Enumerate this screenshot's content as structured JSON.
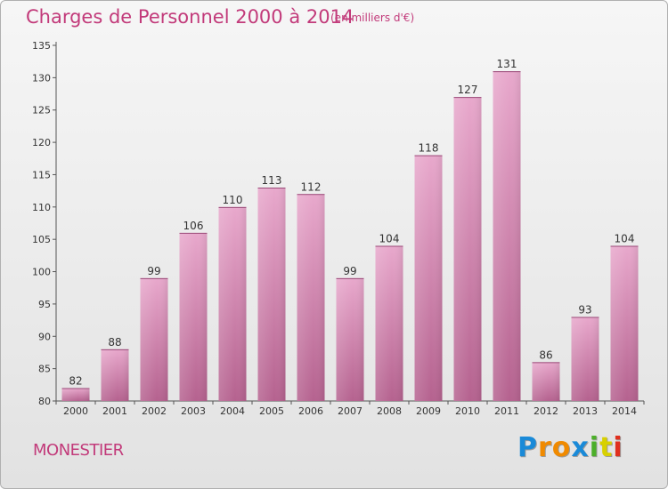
{
  "header": {
    "title": "Charges de Personnel 2000 à 2014",
    "subtitle": "(en milliers d'€)"
  },
  "footer": {
    "place": "MONESTIER",
    "logo_text": "Proxiti",
    "logo_colors": [
      "#1a8ad8",
      "#f08a00",
      "#f08a00",
      "#1a8ad8",
      "#4caf2a",
      "#d8d000",
      "#e0301e"
    ]
  },
  "colors": {
    "bar": "#d67fb0",
    "bar_light": "#e8a8cc",
    "bar_dark": "#b05a8c",
    "title": "#c23a7a"
  },
  "chart_data": {
    "type": "bar",
    "categories": [
      "2000",
      "2001",
      "2002",
      "2003",
      "2004",
      "2005",
      "2006",
      "2007",
      "2008",
      "2009",
      "2010",
      "2011",
      "2012",
      "2013",
      "2014"
    ],
    "values": [
      82,
      88,
      99,
      106,
      110,
      113,
      112,
      99,
      104,
      118,
      127,
      131,
      86,
      93,
      104
    ],
    "title": "Charges de Personnel 2000 à 2014",
    "subtitle": "(en milliers d'€)",
    "ylim": [
      80,
      135
    ],
    "yticks": [
      80,
      85,
      90,
      95,
      100,
      105,
      110,
      115,
      120,
      125,
      130,
      135
    ],
    "grid": false,
    "data_labels": true
  }
}
